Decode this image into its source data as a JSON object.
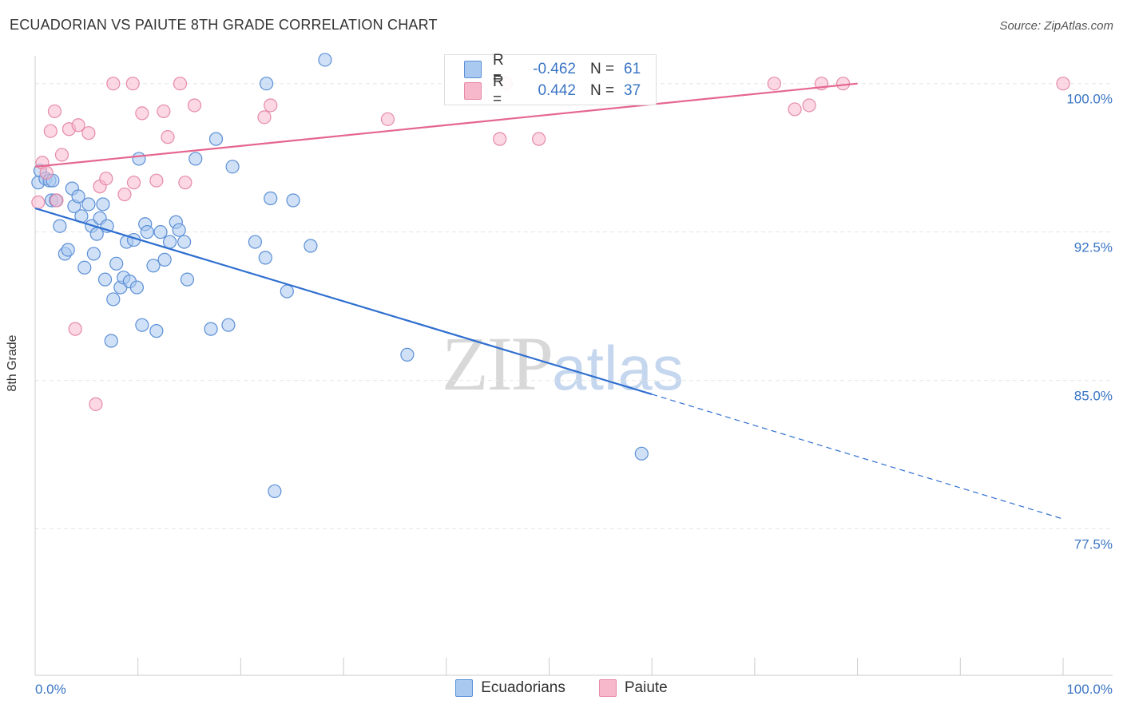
{
  "title": "ECUADORIAN VS PAIUTE 8TH GRADE CORRELATION CHART",
  "source": "Source: ZipAtlas.com",
  "watermark": {
    "zip": "ZIP",
    "atlas": "atlas"
  },
  "legend": {
    "rows": [
      {
        "r_label": "R =",
        "r_value": "-0.462",
        "n_label": "N =",
        "n_value": "61"
      },
      {
        "r_label": "R =",
        "r_value": "0.442",
        "n_label": "N =",
        "n_value": "37"
      }
    ]
  },
  "colors": {
    "ecuadorians_fill": "#a9c9f0",
    "ecuadorians_stroke": "#5b8fd6",
    "ecuadorians_line": "#2f6fd0",
    "paiute_fill": "#f7b8cc",
    "paiute_stroke": "#e68aa8",
    "paiute_line": "#e5668f",
    "tick_label": "#3a75c4",
    "grid": "#e6e6e6"
  },
  "chart_data": {
    "type": "scatter",
    "title": "ECUADORIAN VS PAIUTE 8TH GRADE CORRELATION CHART",
    "xlabel": "",
    "ylabel": "8th Grade",
    "xlim": [
      0,
      100
    ],
    "ylim": [
      70.1,
      101.4
    ],
    "x_tick_labels": [
      "0.0%",
      "100.0%"
    ],
    "y_ticks": [
      100.0,
      92.5,
      85.0,
      77.5
    ],
    "y_tick_labels": [
      "100.0%",
      "92.5%",
      "85.0%",
      "77.5%"
    ],
    "series": [
      {
        "name": "Ecuadorians",
        "r": -0.462,
        "n": 61,
        "points": [
          [
            0.3,
            95.0
          ],
          [
            0.5,
            95.6
          ],
          [
            1.0,
            95.2
          ],
          [
            1.4,
            95.1
          ],
          [
            1.6,
            94.1
          ],
          [
            2.0,
            94.1
          ],
          [
            2.4,
            92.8
          ],
          [
            2.9,
            91.4
          ],
          [
            3.2,
            91.6
          ],
          [
            3.6,
            94.7
          ],
          [
            3.8,
            93.8
          ],
          [
            4.2,
            94.3
          ],
          [
            4.5,
            93.3
          ],
          [
            4.8,
            90.7
          ],
          [
            5.2,
            93.9
          ],
          [
            5.5,
            92.8
          ],
          [
            5.7,
            91.4
          ],
          [
            6.0,
            92.4
          ],
          [
            6.3,
            93.2
          ],
          [
            6.6,
            93.9
          ],
          [
            6.8,
            90.1
          ],
          [
            7.0,
            92.8
          ],
          [
            7.4,
            87.0
          ],
          [
            7.6,
            89.1
          ],
          [
            7.9,
            90.9
          ],
          [
            8.3,
            89.7
          ],
          [
            8.6,
            90.2
          ],
          [
            8.9,
            92.0
          ],
          [
            9.2,
            90.0
          ],
          [
            9.6,
            92.1
          ],
          [
            9.9,
            89.7
          ],
          [
            10.1,
            96.2
          ],
          [
            10.4,
            87.8
          ],
          [
            10.7,
            92.9
          ],
          [
            10.9,
            92.5
          ],
          [
            11.5,
            90.8
          ],
          [
            11.8,
            87.5
          ],
          [
            12.2,
            92.5
          ],
          [
            12.6,
            91.1
          ],
          [
            13.1,
            92.0
          ],
          [
            13.7,
            93.0
          ],
          [
            14.0,
            92.6
          ],
          [
            14.5,
            92.0
          ],
          [
            14.8,
            90.1
          ],
          [
            15.6,
            96.2
          ],
          [
            17.1,
            87.6
          ],
          [
            17.6,
            97.2
          ],
          [
            18.8,
            87.8
          ],
          [
            19.2,
            95.8
          ],
          [
            21.4,
            92.0
          ],
          [
            22.4,
            91.2
          ],
          [
            22.9,
            94.2
          ],
          [
            22.5,
            100.0
          ],
          [
            23.3,
            79.4
          ],
          [
            24.5,
            89.5
          ],
          [
            25.1,
            94.1
          ],
          [
            26.8,
            91.8
          ],
          [
            28.2,
            101.2
          ],
          [
            36.2,
            86.3
          ],
          [
            59.0,
            81.3
          ],
          [
            1.7,
            95.1
          ]
        ]
      },
      {
        "name": "Paiute",
        "r": 0.442,
        "n": 37,
        "points": [
          [
            0.3,
            94.0
          ],
          [
            0.7,
            96.0
          ],
          [
            1.1,
            95.5
          ],
          [
            1.5,
            97.6
          ],
          [
            1.9,
            98.6
          ],
          [
            2.1,
            94.1
          ],
          [
            2.6,
            96.4
          ],
          [
            3.3,
            97.7
          ],
          [
            3.9,
            87.6
          ],
          [
            4.2,
            97.9
          ],
          [
            5.2,
            97.5
          ],
          [
            5.9,
            83.8
          ],
          [
            6.3,
            94.8
          ],
          [
            6.9,
            95.2
          ],
          [
            7.6,
            100.0
          ],
          [
            9.5,
            100.0
          ],
          [
            8.7,
            94.4
          ],
          [
            9.6,
            95.0
          ],
          [
            10.4,
            98.5
          ],
          [
            11.8,
            95.1
          ],
          [
            12.5,
            98.6
          ],
          [
            12.9,
            97.3
          ],
          [
            14.1,
            100.0
          ],
          [
            14.6,
            95.0
          ],
          [
            15.5,
            98.9
          ],
          [
            22.3,
            98.3
          ],
          [
            22.9,
            98.9
          ],
          [
            34.3,
            98.2
          ],
          [
            45.2,
            97.2
          ],
          [
            49.0,
            97.2
          ],
          [
            45.8,
            100.0
          ],
          [
            71.9,
            100.0
          ],
          [
            73.9,
            98.7
          ],
          [
            75.3,
            98.9
          ],
          [
            76.5,
            100.0
          ],
          [
            78.6,
            100.0
          ],
          [
            100.0,
            100.0
          ]
        ]
      }
    ],
    "trend_lines": [
      {
        "series": "Ecuadorians",
        "solid": [
          [
            0,
            93.7
          ],
          [
            60,
            84.3
          ]
        ],
        "dashed": [
          [
            60,
            84.3
          ],
          [
            100,
            78.0
          ]
        ]
      },
      {
        "series": "Paiute",
        "solid": [
          [
            0,
            95.8
          ],
          [
            80,
            100.0
          ]
        ]
      }
    ]
  }
}
